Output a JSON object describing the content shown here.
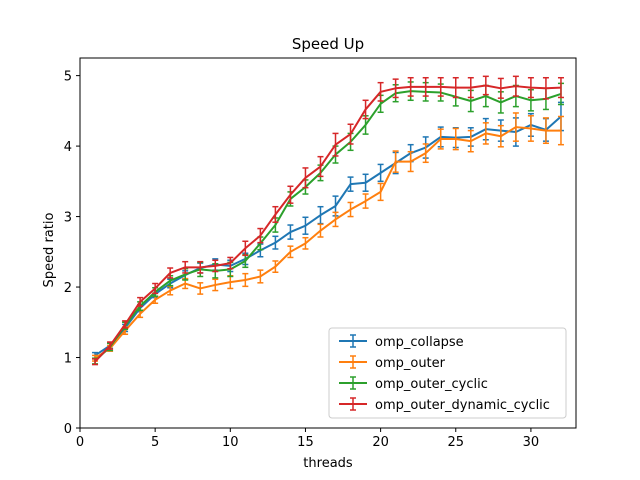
{
  "chart_data": {
    "type": "line",
    "title": "Speed Up",
    "xlabel": "threads",
    "ylabel": "Speed ratio",
    "xlim": [
      0,
      33
    ],
    "ylim": [
      0,
      5.25
    ],
    "xticks": [
      0,
      5,
      10,
      15,
      20,
      25,
      30
    ],
    "yticks": [
      0,
      1,
      2,
      3,
      4,
      5
    ],
    "grid": false,
    "legend_position": "lower-right",
    "x": [
      1,
      2,
      3,
      4,
      5,
      6,
      7,
      8,
      9,
      10,
      11,
      12,
      13,
      14,
      15,
      16,
      17,
      18,
      19,
      20,
      21,
      22,
      23,
      24,
      25,
      26,
      27,
      28,
      29,
      30,
      31,
      32
    ],
    "series": [
      {
        "name": "omp_collapse",
        "color": "#1f77b4",
        "values": [
          1.03,
          1.17,
          1.42,
          1.7,
          1.9,
          2.05,
          2.17,
          2.27,
          2.32,
          2.3,
          2.4,
          2.52,
          2.63,
          2.78,
          2.87,
          3.02,
          3.15,
          3.46,
          3.48,
          3.62,
          3.76,
          3.9,
          3.98,
          4.13,
          4.12,
          4.13,
          4.24,
          4.22,
          4.2,
          4.3,
          4.23,
          4.42
        ],
        "errors": [
          0.04,
          0.04,
          0.05,
          0.05,
          0.05,
          0.06,
          0.06,
          0.07,
          0.08,
          0.08,
          0.08,
          0.09,
          0.09,
          0.1,
          0.12,
          0.12,
          0.14,
          0.1,
          0.12,
          0.12,
          0.15,
          0.12,
          0.15,
          0.14,
          0.14,
          0.13,
          0.15,
          0.15,
          0.2,
          0.16,
          0.16,
          0.2
        ]
      },
      {
        "name": "omp_outer",
        "color": "#ff7f0e",
        "values": [
          0.99,
          1.13,
          1.38,
          1.62,
          1.82,
          1.95,
          2.05,
          1.98,
          2.03,
          2.07,
          2.1,
          2.15,
          2.29,
          2.5,
          2.62,
          2.8,
          2.96,
          3.1,
          3.22,
          3.35,
          3.78,
          3.78,
          3.9,
          4.1,
          4.1,
          4.07,
          4.18,
          4.14,
          4.27,
          4.25,
          4.22,
          4.22
        ],
        "errors": [
          0.04,
          0.04,
          0.05,
          0.05,
          0.05,
          0.06,
          0.07,
          0.08,
          0.08,
          0.09,
          0.09,
          0.09,
          0.08,
          0.08,
          0.08,
          0.09,
          0.1,
          0.1,
          0.1,
          0.12,
          0.15,
          0.14,
          0.13,
          0.14,
          0.15,
          0.15,
          0.15,
          0.15,
          0.2,
          0.18,
          0.18,
          0.2
        ]
      },
      {
        "name": "omp_outer_cyclic",
        "color": "#2ca02c",
        "values": [
          0.95,
          1.15,
          1.45,
          1.73,
          1.93,
          2.09,
          2.18,
          2.25,
          2.23,
          2.25,
          2.37,
          2.62,
          2.88,
          3.25,
          3.42,
          3.62,
          3.88,
          4.06,
          4.3,
          4.6,
          4.75,
          4.78,
          4.77,
          4.76,
          4.7,
          4.64,
          4.71,
          4.62,
          4.71,
          4.65,
          4.67,
          4.74
        ],
        "errors": [
          0.04,
          0.05,
          0.05,
          0.06,
          0.06,
          0.07,
          0.08,
          0.1,
          0.1,
          0.1,
          0.09,
          0.09,
          0.1,
          0.1,
          0.1,
          0.11,
          0.12,
          0.12,
          0.13,
          0.12,
          0.12,
          0.13,
          0.13,
          0.12,
          0.13,
          0.15,
          0.15,
          0.15,
          0.15,
          0.15,
          0.15,
          0.15
        ]
      },
      {
        "name": "omp_outer_dynamic_cyclic",
        "color": "#d62728",
        "values": [
          0.94,
          1.17,
          1.47,
          1.79,
          1.98,
          2.2,
          2.28,
          2.28,
          2.3,
          2.34,
          2.55,
          2.73,
          3.03,
          3.31,
          3.55,
          3.71,
          4.02,
          4.17,
          4.52,
          4.77,
          4.82,
          4.84,
          4.84,
          4.84,
          4.83,
          4.83,
          4.86,
          4.82,
          4.85,
          4.83,
          4.82,
          4.83
        ],
        "errors": [
          0.04,
          0.05,
          0.05,
          0.06,
          0.07,
          0.07,
          0.08,
          0.08,
          0.08,
          0.08,
          0.1,
          0.1,
          0.11,
          0.12,
          0.14,
          0.14,
          0.16,
          0.14,
          0.13,
          0.13,
          0.13,
          0.13,
          0.13,
          0.13,
          0.14,
          0.14,
          0.13,
          0.14,
          0.14,
          0.14,
          0.15,
          0.14
        ]
      }
    ]
  }
}
